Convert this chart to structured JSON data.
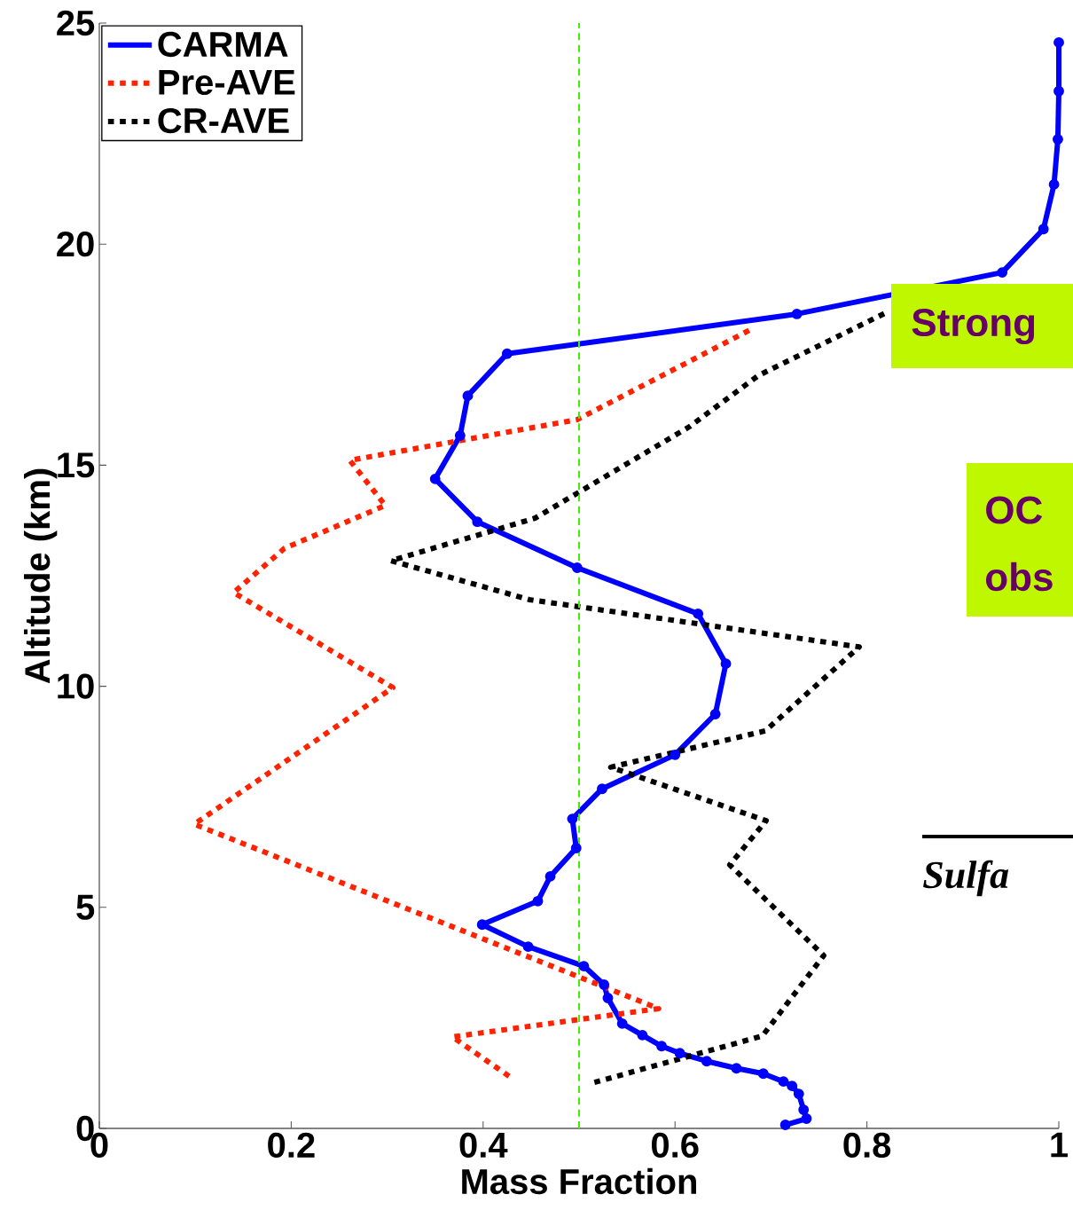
{
  "chart_data": {
    "type": "line",
    "xlabel": "Mass Fraction",
    "ylabel": "Altitude (km)",
    "xlim": [
      0,
      1
    ],
    "ylim": [
      0,
      25
    ],
    "xticks": [
      0,
      0.2,
      0.4,
      0.6,
      0.8,
      1
    ],
    "yticks": [
      0,
      5,
      10,
      15,
      20,
      25
    ],
    "grid": false,
    "legend": "top left",
    "series": [
      {
        "name": "CARMA",
        "color": "#0000ff",
        "line_style": "solid",
        "marker": "circle",
        "x": [
          0.715,
          0.737,
          0.734,
          0.729,
          0.722,
          0.713,
          0.692,
          0.664,
          0.633,
          0.605,
          0.586,
          0.566,
          0.545,
          0.53,
          0.526,
          0.505,
          0.447,
          0.399,
          0.457,
          0.47,
          0.497,
          0.493,
          0.524,
          0.6,
          0.642,
          0.653,
          0.624,
          0.498,
          0.394,
          0.35,
          0.376,
          0.384,
          0.425,
          0.727,
          0.941,
          0.984,
          0.995,
          0.999,
          1.0,
          1.0
        ],
        "values": [
          0.08,
          0.22,
          0.42,
          0.78,
          0.96,
          1.06,
          1.24,
          1.36,
          1.52,
          1.7,
          1.86,
          2.11,
          2.37,
          2.95,
          3.25,
          3.67,
          4.11,
          4.61,
          5.14,
          5.7,
          6.34,
          7.0,
          7.68,
          8.45,
          9.37,
          10.51,
          11.64,
          12.68,
          13.72,
          14.69,
          15.67,
          16.57,
          17.52,
          18.42,
          19.36,
          20.34,
          21.35,
          22.37,
          23.46,
          24.56
        ]
      },
      {
        "name": "Pre-AVE",
        "color": "#ff2200",
        "line_style": "dotted",
        "marker": "none",
        "x": [
          0.427,
          0.368,
          0.583,
          0.099,
          0.306,
          0.14,
          0.193,
          0.298,
          0.261,
          0.498,
          0.68
        ],
        "values": [
          1.18,
          2.07,
          2.71,
          6.88,
          9.97,
          12.12,
          13.12,
          14.09,
          15.11,
          16.03,
          18.08
        ]
      },
      {
        "name": "CR-AVE",
        "color": "#000000",
        "line_style": "dotted",
        "marker": "none",
        "x": [
          0.516,
          0.691,
          0.755,
          0.657,
          0.695,
          0.533,
          0.694,
          0.792,
          0.448,
          0.304,
          0.454,
          0.615,
          0.687,
          0.82
        ],
        "values": [
          1.04,
          2.09,
          3.91,
          5.96,
          6.96,
          8.17,
          8.99,
          10.89,
          11.96,
          12.84,
          13.8,
          15.87,
          17.03,
          18.45
        ]
      }
    ],
    "ref_lines": [
      {
        "axis": "x",
        "value": 0.5,
        "color": "#44ee00",
        "line_style": "dashed"
      }
    ],
    "annotations": [
      "Strong",
      "OC",
      "obs",
      "Sulfa"
    ]
  }
}
